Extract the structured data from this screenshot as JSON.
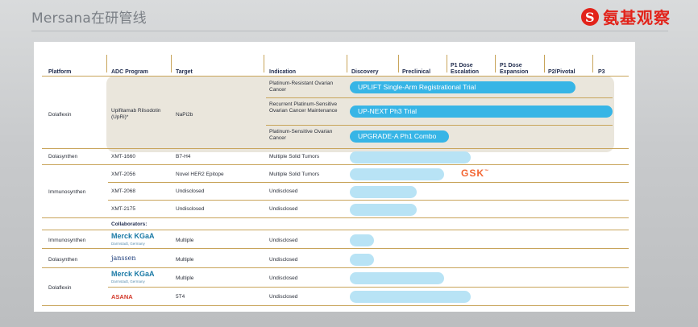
{
  "page": {
    "title": "Mersana在研管线",
    "brand": "氨基观察",
    "brand_mark": "S",
    "colors": {
      "accent": "#37b5e6",
      "pale": "#b8e3f5",
      "rule": "#c8a45a",
      "brand": "#e2231a"
    }
  },
  "headers": [
    "Platform",
    "ADC Program",
    "Target",
    "Indication",
    "Discovery",
    "Preclinical",
    "P1 Dose Escalation",
    "P1 Dose Expansion",
    "P2/Pivotal",
    "P3"
  ],
  "headers_split": {
    "p1_esc": [
      "P1 Dose",
      "Escalation"
    ],
    "p1_exp": [
      "P1 Dose",
      "Expansion"
    ]
  },
  "dolaflexin": {
    "platform": "Dolaflexin",
    "program": "Upifitamab Rilsodotin (UpRi)*",
    "target": "NaPi2b",
    "rows": [
      {
        "indication": "Platinum-Resistant Ovarian Cancer",
        "bar": "UPLIFT Single-Arm Registrational Trial"
      },
      {
        "indication": "Recurrent Platinum-Sensitive Ovarian Cancer Maintenance",
        "bar": "UP-NEXT Ph3 Trial"
      },
      {
        "indication": "Platinum-Sensitive Ovarian Cancer",
        "bar": "UPGRADE-A Ph1 Combo"
      }
    ]
  },
  "dolasynthen": {
    "platform": "Dolasynthen",
    "program": "XMT-1660",
    "target": "B7-H4",
    "indication": "Multiple Solid Tumors"
  },
  "immunosynthen": {
    "platform": "Immunosynthen",
    "rows": [
      {
        "program": "XMT-2056",
        "target": "Novel HER2 Epitope",
        "indication": "Multiple Solid Tumors"
      },
      {
        "program": "XMT-2068",
        "target": "Undisclosed",
        "indication": "Undisclosed"
      },
      {
        "program": "XMT-2175",
        "target": "Undisclosed",
        "indication": "Undisclosed"
      }
    ],
    "partner": "GSK"
  },
  "collaborators": {
    "label": "Collaborators:",
    "rows": [
      {
        "platform": "Immunosynthen",
        "partner": "Merck KGaA",
        "partner_sub": "Darmstadt, Germany",
        "target": "Multiple",
        "indication": "Undisclosed"
      },
      {
        "platform": "Dolasynthen",
        "partner": "janssen",
        "target": "Multiple",
        "indication": "Undisclosed"
      },
      {
        "platform": "Dolaflexin",
        "partner": "Merck KGaA",
        "partner_sub": "Darmstadt, Germany",
        "target": "Multiple",
        "indication": "Undisclosed"
      },
      {
        "platform": "",
        "partner": "ASANA",
        "target": "5T4",
        "indication": "Undisclosed"
      }
    ]
  }
}
